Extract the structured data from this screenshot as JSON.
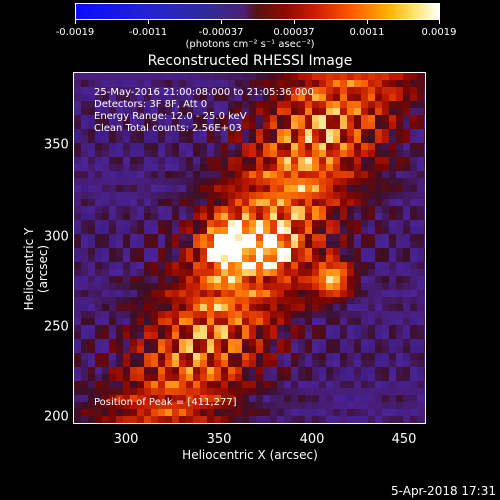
{
  "colorbar": {
    "ticks": [
      "-0.0019",
      "-0.0011",
      "-0.00037",
      "0.00037",
      "0.0011",
      "0.0019"
    ],
    "units": "(photons cm⁻² s⁻¹ asec⁻²)"
  },
  "title": "Reconstructed RHESSI Image",
  "info": {
    "time_range": "25-May-2016 21:00:08.000 to 21:05:36.000",
    "detectors": "Detectors: 3F 8F, Att 0",
    "energy": "Energy Range: 12.0 - 25.0 keV",
    "clean": "Clean     Total counts: 2.56E+03",
    "peak": "Position of Peak = [411,277]"
  },
  "axes": {
    "xlabel": "Heliocentric X (arcsec)",
    "ylabel": "Heliocentric Y (arcsec)",
    "xticks": [
      "300",
      "350",
      "400",
      "450"
    ],
    "yticks": [
      "350",
      "300",
      "250",
      "200"
    ]
  },
  "footer": "5-Apr-2018 17:31",
  "colors": {
    "background": "#000000",
    "low": "#3b1a8a",
    "high": "#ffffff"
  }
}
